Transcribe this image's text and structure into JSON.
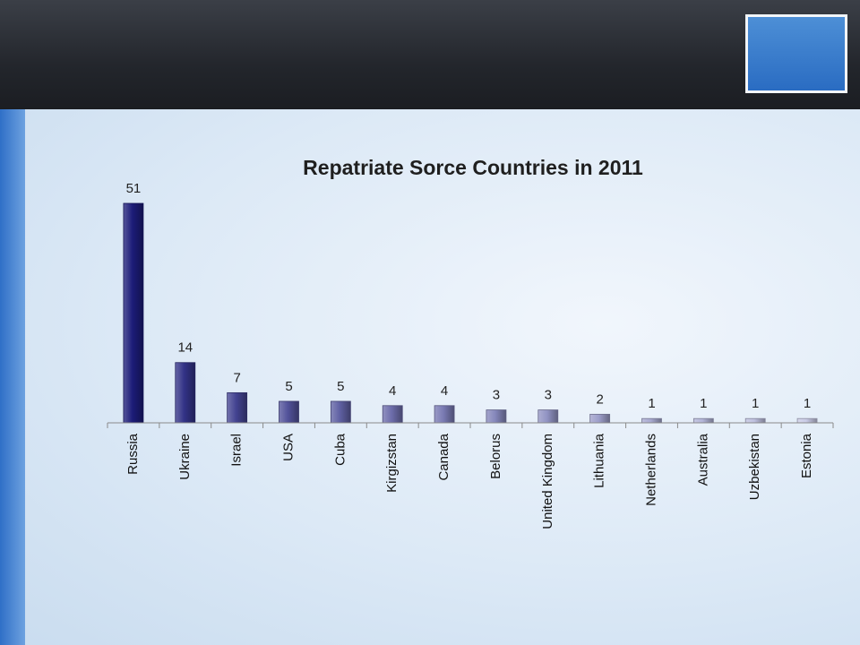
{
  "chart_data": {
    "type": "bar",
    "title": "Repatriate Sorce Countries in 2011",
    "xlabel": "",
    "ylabel": "",
    "categories": [
      "Russia",
      "Ukraine",
      "Israel",
      "USA",
      "Cuba",
      "Kirgizstan",
      "Canada",
      "Belorus",
      "United Kingdom",
      "Lithuania",
      "Netherlands",
      "Australia",
      "Uzbekistan",
      "Estonia"
    ],
    "values": [
      51,
      14,
      7,
      5,
      5,
      4,
      4,
      3,
      3,
      2,
      1,
      1,
      1,
      1
    ],
    "ylim": [
      0,
      51
    ],
    "grid": false,
    "legend": "none",
    "data_labels": true
  },
  "colors": {
    "bar_high": "#1c1c78",
    "bar_low": "#c9cbe6",
    "header": "#25282e"
  },
  "icons": {
    "logo": "people-chain-logo-icon"
  }
}
